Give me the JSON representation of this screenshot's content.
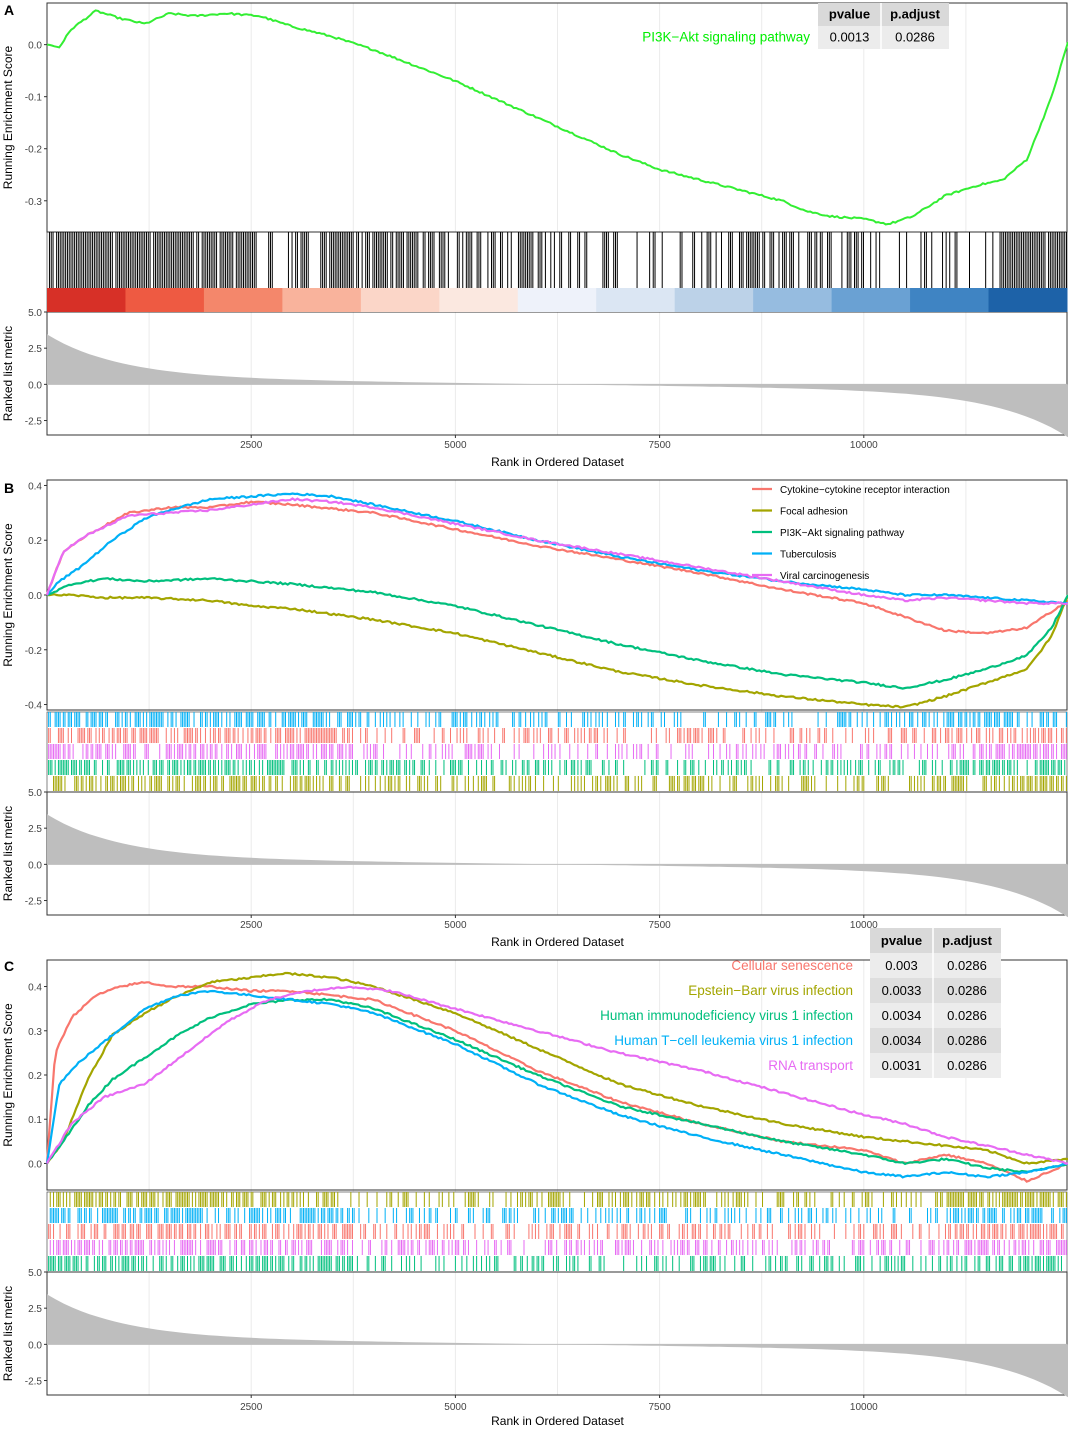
{
  "chart_data": [
    {
      "panel_letter": "A",
      "type": "line",
      "ylabel": "Running Enrichment Score",
      "metric_ylabel": "Ranked list metric",
      "xlabel": "Rank in Ordered Dataset",
      "xlim": [
        0,
        12500
      ],
      "ylim": [
        -0.36,
        0.08
      ],
      "yticks": [
        0.0,
        -0.1,
        -0.2,
        -0.3
      ],
      "ytick_labels": [
        "0.0",
        "-0.1",
        "-0.2",
        "-0.3"
      ],
      "xticks": [
        2500,
        5000,
        7500,
        10000
      ],
      "xtick_labels": [
        "2500",
        "5000",
        "7500",
        "10000"
      ],
      "metric_ylim": [
        -3.5,
        5.0
      ],
      "metric_yticks": [
        5.0,
        2.5,
        0.0,
        -2.5
      ],
      "metric_ytick_labels": [
        "5.0",
        "2.5",
        "0.0",
        "-2.5"
      ],
      "has_color_band": true,
      "legend": "inline-top-right",
      "table": {
        "headers": [
          "pvalue",
          "p.adjust"
        ],
        "rows": [
          {
            "name": "PI3K−Akt signaling pathway",
            "color": "#00ee00",
            "pvalue": "0.0013",
            "padjust": "0.0286"
          }
        ]
      },
      "series": [
        {
          "name": "PI3K−Akt signaling pathway",
          "color": "#33ee33",
          "x": [
            0,
            150,
            300,
            600,
            900,
            1200,
            1500,
            1800,
            2200,
            2600,
            3000,
            3500,
            4000,
            4500,
            5000,
            5500,
            6000,
            6500,
            7000,
            7500,
            8000,
            8500,
            9000,
            9300,
            9600,
            10000,
            10300,
            10600,
            11000,
            11400,
            11700,
            12000,
            12300,
            12500
          ],
          "y": [
            0.0,
            -0.005,
            0.03,
            0.065,
            0.05,
            0.04,
            0.06,
            0.055,
            0.06,
            0.055,
            0.035,
            0.015,
            -0.01,
            -0.04,
            -0.07,
            -0.105,
            -0.14,
            -0.175,
            -0.21,
            -0.24,
            -0.26,
            -0.28,
            -0.3,
            -0.32,
            -0.33,
            -0.335,
            -0.345,
            -0.33,
            -0.29,
            -0.27,
            -0.26,
            -0.22,
            -0.1,
            0.005
          ],
          "hits_density": [
            0.95,
            0.9,
            0.9,
            0.45,
            0.85,
            0.65,
            0.7,
            0.5,
            0.35,
            0.2,
            0.55,
            0.5,
            0.25,
            0.3,
            0.95
          ]
        }
      ]
    },
    {
      "panel_letter": "B",
      "type": "line",
      "ylabel": "Running Enrichment Score",
      "metric_ylabel": "Ranked list metric",
      "xlabel": "Rank in Ordered Dataset",
      "xlim": [
        0,
        12500
      ],
      "ylim": [
        -0.42,
        0.42
      ],
      "yticks": [
        0.4,
        0.2,
        0.0,
        -0.2,
        -0.4
      ],
      "ytick_labels": [
        "0.4",
        "0.2",
        "0.0",
        "-0.2",
        "-0.4"
      ],
      "xticks": [
        2500,
        5000,
        7500,
        10000
      ],
      "xtick_labels": [
        "2500",
        "5000",
        "7500",
        "10000"
      ],
      "metric_ylim": [
        -3.5,
        5.0
      ],
      "metric_yticks": [
        5.0,
        2.5,
        0.0,
        -2.5
      ],
      "metric_ytick_labels": [
        "5.0",
        "2.5",
        "0.0",
        "-2.5"
      ],
      "has_color_band": false,
      "legend": "top-right",
      "series": [
        {
          "name": "Cytokine−cytokine receptor interaction",
          "color": "#f8766d",
          "x": [
            0,
            200,
            500,
            1000,
            1500,
            2000,
            2500,
            3000,
            4000,
            5000,
            6000,
            7000,
            8000,
            9000,
            10000,
            11000,
            11500,
            12000,
            12500
          ],
          "y": [
            0.0,
            0.16,
            0.22,
            0.3,
            0.32,
            0.32,
            0.34,
            0.33,
            0.3,
            0.24,
            0.18,
            0.13,
            0.08,
            0.02,
            -0.03,
            -0.13,
            -0.14,
            -0.12,
            -0.02
          ]
        },
        {
          "name": "Focal adhesion",
          "color": "#a3a500",
          "x": [
            0,
            300,
            700,
            1200,
            2000,
            2500,
            3000,
            4000,
            5000,
            6000,
            7000,
            8000,
            9000,
            10000,
            10500,
            11000,
            11500,
            12000,
            12300,
            12500
          ],
          "y": [
            0.0,
            0.0,
            -0.01,
            -0.01,
            -0.02,
            -0.04,
            -0.05,
            -0.09,
            -0.14,
            -0.21,
            -0.28,
            -0.33,
            -0.37,
            -0.4,
            -0.41,
            -0.37,
            -0.32,
            -0.27,
            -0.15,
            0.0
          ]
        },
        {
          "name": "PI3K−Akt signaling pathway",
          "color": "#00bf7d",
          "x": [
            0,
            300,
            700,
            1200,
            2000,
            2500,
            3000,
            4000,
            5000,
            6000,
            7000,
            8000,
            9000,
            10000,
            10500,
            11000,
            11500,
            12000,
            12300,
            12500
          ],
          "y": [
            0.0,
            0.04,
            0.06,
            0.05,
            0.06,
            0.05,
            0.04,
            0.01,
            -0.04,
            -0.11,
            -0.18,
            -0.24,
            -0.29,
            -0.32,
            -0.34,
            -0.31,
            -0.27,
            -0.22,
            -0.12,
            0.0
          ]
        },
        {
          "name": "Tuberculosis",
          "color": "#00b0f6",
          "x": [
            0,
            150,
            400,
            800,
            1200,
            1500,
            2000,
            2500,
            3000,
            3500,
            4000,
            5000,
            6000,
            7000,
            8000,
            9000,
            10000,
            10500,
            11000,
            11500,
            12000,
            12500
          ],
          "y": [
            0.0,
            0.05,
            0.1,
            0.2,
            0.28,
            0.31,
            0.35,
            0.36,
            0.37,
            0.36,
            0.33,
            0.27,
            0.2,
            0.14,
            0.09,
            0.05,
            0.02,
            0.0,
            0.0,
            -0.01,
            -0.02,
            -0.03
          ]
        },
        {
          "name": "Viral carcinogenesis",
          "color": "#e76bf3",
          "x": [
            0,
            200,
            500,
            1000,
            1500,
            2000,
            2500,
            3000,
            3500,
            4000,
            5000,
            6000,
            7000,
            8000,
            9000,
            10000,
            10500,
            11000,
            11500,
            12000,
            12500
          ],
          "y": [
            0.0,
            0.16,
            0.22,
            0.29,
            0.3,
            0.31,
            0.33,
            0.35,
            0.34,
            0.32,
            0.26,
            0.2,
            0.15,
            0.1,
            0.05,
            0.0,
            -0.02,
            -0.01,
            -0.02,
            -0.03,
            -0.03
          ]
        }
      ],
      "rug_order": [
        "Tuberculosis",
        "Cytokine−cytokine receptor interaction",
        "Viral carcinogenesis",
        "PI3K−Akt signaling pathway",
        "Focal adhesion"
      ]
    },
    {
      "panel_letter": "C",
      "type": "line",
      "ylabel": "Running Enrichment Score",
      "metric_ylabel": "Ranked list metric",
      "xlabel": "Rank in Ordered Dataset",
      "xlim": [
        0,
        12500
      ],
      "ylim": [
        -0.06,
        0.46
      ],
      "yticks": [
        0.4,
        0.3,
        0.2,
        0.1,
        0.0
      ],
      "ytick_labels": [
        "0.4",
        "0.3",
        "0.2",
        "0.1",
        "0.0"
      ],
      "xticks": [
        2500,
        5000,
        7500,
        10000
      ],
      "xtick_labels": [
        "2500",
        "5000",
        "7500",
        "10000"
      ],
      "metric_ylim": [
        -3.5,
        5.0
      ],
      "metric_yticks": [
        5.0,
        2.5,
        0.0,
        -2.5
      ],
      "metric_ytick_labels": [
        "5.0",
        "2.5",
        "0.0",
        "-2.5"
      ],
      "has_color_band": false,
      "legend": "inline-top-right",
      "table": {
        "headers": [
          "pvalue",
          "p.adjust"
        ],
        "rows": [
          {
            "name": "Cellular senescence",
            "color": "#f8766d",
            "pvalue": "0.003",
            "padjust": "0.0286"
          },
          {
            "name": "Epstein−Barr virus infection",
            "color": "#a3a500",
            "pvalue": "0.0033",
            "padjust": "0.0286"
          },
          {
            "name": "Human immunodeficiency virus 1 infection",
            "color": "#00bf7d",
            "pvalue": "0.0034",
            "padjust": "0.0286"
          },
          {
            "name": "Human T−cell leukemia virus 1 infection",
            "color": "#00b0f6",
            "pvalue": "0.0034",
            "padjust": "0.0286"
          },
          {
            "name": "RNA transport",
            "color": "#e76bf3",
            "pvalue": "0.0031",
            "padjust": "0.0286"
          }
        ]
      },
      "series": [
        {
          "name": "Cellular senescence",
          "color": "#f8766d",
          "x": [
            0,
            100,
            300,
            600,
            900,
            1200,
            1500,
            2000,
            2500,
            3000,
            3500,
            4000,
            5000,
            6000,
            7000,
            8000,
            9000,
            10000,
            10500,
            11000,
            11500,
            12000,
            12500
          ],
          "y": [
            0.0,
            0.25,
            0.33,
            0.38,
            0.4,
            0.41,
            0.4,
            0.4,
            0.39,
            0.39,
            0.38,
            0.37,
            0.3,
            0.21,
            0.14,
            0.09,
            0.05,
            0.03,
            0.0,
            0.02,
            0.0,
            -0.04,
            0.0
          ]
        },
        {
          "name": "Epstein−Barr virus infection",
          "color": "#a3a500",
          "x": [
            0,
            200,
            500,
            800,
            1200,
            1500,
            2000,
            2500,
            2900,
            3500,
            4000,
            5000,
            6000,
            7000,
            8000,
            9000,
            10000,
            10500,
            11000,
            11500,
            12000,
            12500
          ],
          "y": [
            0.0,
            0.05,
            0.19,
            0.29,
            0.34,
            0.37,
            0.41,
            0.42,
            0.43,
            0.42,
            0.4,
            0.34,
            0.26,
            0.18,
            0.13,
            0.09,
            0.06,
            0.05,
            0.04,
            0.03,
            0.0,
            0.01
          ]
        },
        {
          "name": "Human immunodeficiency virus 1 infection",
          "color": "#00bf7d",
          "x": [
            0,
            200,
            500,
            800,
            1200,
            1600,
            2000,
            2500,
            3000,
            3500,
            4000,
            5000,
            6000,
            7000,
            8000,
            9000,
            10000,
            10500,
            11000,
            11500,
            12000,
            12500
          ],
          "y": [
            0.0,
            0.05,
            0.13,
            0.19,
            0.24,
            0.29,
            0.33,
            0.36,
            0.37,
            0.37,
            0.35,
            0.28,
            0.2,
            0.13,
            0.09,
            0.05,
            0.02,
            0.0,
            0.01,
            -0.01,
            -0.02,
            0.0
          ]
        },
        {
          "name": "Human T−cell leukemia virus 1 infection",
          "color": "#00b0f6",
          "x": [
            0,
            150,
            400,
            800,
            1200,
            1600,
            2000,
            2500,
            3000,
            3500,
            4000,
            5000,
            6000,
            7000,
            8000,
            9000,
            10000,
            10500,
            11000,
            11500,
            12000,
            12500
          ],
          "y": [
            0.0,
            0.18,
            0.23,
            0.29,
            0.35,
            0.38,
            0.39,
            0.38,
            0.37,
            0.36,
            0.34,
            0.27,
            0.18,
            0.11,
            0.06,
            0.02,
            -0.02,
            -0.03,
            -0.02,
            -0.03,
            -0.02,
            0.0
          ]
        },
        {
          "name": "RNA transport",
          "color": "#e76bf3",
          "x": [
            0,
            300,
            700,
            1200,
            1700,
            2200,
            2700,
            3200,
            3700,
            4200,
            5000,
            6000,
            7000,
            8000,
            9000,
            10000,
            10500,
            11000,
            11500,
            12000,
            12500
          ],
          "y": [
            0.0,
            0.09,
            0.15,
            0.18,
            0.25,
            0.32,
            0.37,
            0.39,
            0.4,
            0.39,
            0.35,
            0.3,
            0.25,
            0.21,
            0.16,
            0.11,
            0.09,
            0.06,
            0.04,
            0.02,
            0.0
          ]
        }
      ],
      "rug_order": [
        "Epstein−Barr virus infection",
        "Human T−cell leukemia virus 1 infection",
        "Cellular senescence",
        "RNA transport",
        "Human immunodeficiency virus 1 infection"
      ]
    }
  ]
}
